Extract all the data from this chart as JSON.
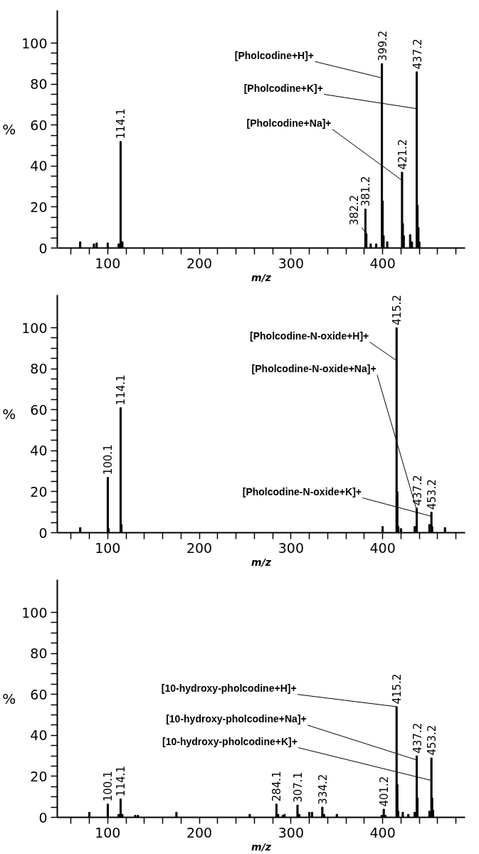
{
  "chart_data": [
    {
      "type": "bar",
      "xlabel": "m/z",
      "ylabel": "%",
      "color": "#000000",
      "grid": false,
      "xlim": [
        45,
        490
      ],
      "ylim": [
        0,
        116
      ],
      "xticks": [
        {
          "value": 60,
          "label": null
        },
        {
          "value": 80,
          "label": null
        },
        100,
        {
          "value": 120,
          "label": null
        },
        {
          "value": 140,
          "label": null
        },
        {
          "value": 160,
          "label": null
        },
        {
          "value": 180,
          "label": null
        },
        200,
        {
          "value": 220,
          "label": null
        },
        {
          "value": 240,
          "label": null
        },
        {
          "value": 260,
          "label": null
        },
        {
          "value": 280,
          "label": null
        },
        300,
        {
          "value": 320,
          "label": null
        },
        {
          "value": 340,
          "label": null
        },
        {
          "value": 360,
          "label": null
        },
        {
          "value": 380,
          "label": null
        },
        400,
        {
          "value": 420,
          "label": null
        },
        {
          "value": 440,
          "label": null
        },
        {
          "value": 460,
          "label": null
        },
        {
          "value": 480,
          "label": null
        }
      ],
      "yticks": [
        0,
        {
          "value": 5,
          "label": null
        },
        {
          "value": 10,
          "label": null
        },
        {
          "value": 15,
          "label": null
        },
        20,
        {
          "value": 25,
          "label": null
        },
        {
          "value": 30,
          "label": null
        },
        {
          "value": 35,
          "label": null
        },
        40,
        {
          "value": 45,
          "label": null
        },
        {
          "value": 50,
          "label": null
        },
        {
          "value": 55,
          "label": null
        },
        60,
        {
          "value": 65,
          "label": null
        },
        {
          "value": 70,
          "label": null
        },
        {
          "value": 75,
          "label": null
        },
        80,
        {
          "value": 85,
          "label": null
        },
        {
          "value": 90,
          "label": null
        },
        {
          "value": 95,
          "label": null
        },
        100
      ],
      "x": [
        70,
        85,
        88,
        100,
        112,
        114.1,
        116,
        381.2,
        382.2,
        387,
        393,
        399.2,
        400,
        401,
        405,
        421.2,
        422,
        423,
        430,
        432,
        437.2,
        438,
        439,
        440
      ],
      "values": [
        3,
        2,
        2.5,
        2.5,
        2,
        52,
        3,
        19,
        7,
        2,
        2,
        90,
        23,
        6,
        3,
        37,
        12,
        6,
        6.5,
        3,
        86,
        21,
        10,
        3
      ],
      "annotations": [
        {
          "text": "[Pholcodine+H]+",
          "x": 399.2,
          "y": 83
        },
        {
          "text": "[Pholcodine+K]+",
          "x": 437.2,
          "y": 68
        },
        {
          "text": "[Pholcodine+Na]+",
          "x": 421.2,
          "y": 33
        },
        {
          "text": "114.1",
          "x": 114.1,
          "y": 52
        },
        {
          "text": "381.2",
          "x": 381.2,
          "y": 19
        },
        {
          "text": "382.2",
          "x": 382.2,
          "y": 7
        },
        {
          "text": "399.2",
          "x": 399.2,
          "y": 90
        },
        {
          "text": "421.2",
          "x": 421.2,
          "y": 37
        },
        {
          "text": "437.2",
          "x": 437.2,
          "y": 86
        }
      ]
    },
    {
      "type": "bar",
      "xlabel": "m/z",
      "ylabel": "%",
      "color": "#000000",
      "grid": false,
      "xlim": [
        45,
        490
      ],
      "ylim": [
        0,
        116
      ],
      "xticks": [
        {
          "value": 60,
          "label": null
        },
        {
          "value": 80,
          "label": null
        },
        100,
        {
          "value": 120,
          "label": null
        },
        {
          "value": 140,
          "label": null
        },
        {
          "value": 160,
          "label": null
        },
        {
          "value": 180,
          "label": null
        },
        200,
        {
          "value": 220,
          "label": null
        },
        {
          "value": 240,
          "label": null
        },
        {
          "value": 260,
          "label": null
        },
        {
          "value": 280,
          "label": null
        },
        300,
        {
          "value": 320,
          "label": null
        },
        {
          "value": 340,
          "label": null
        },
        {
          "value": 360,
          "label": null
        },
        {
          "value": 380,
          "label": null
        },
        400,
        {
          "value": 420,
          "label": null
        },
        {
          "value": 440,
          "label": null
        },
        {
          "value": 460,
          "label": null
        },
        {
          "value": 480,
          "label": null
        }
      ],
      "yticks": [
        0,
        {
          "value": 5,
          "label": null
        },
        {
          "value": 10,
          "label": null
        },
        {
          "value": 15,
          "label": null
        },
        20,
        {
          "value": 25,
          "label": null
        },
        {
          "value": 30,
          "label": null
        },
        {
          "value": 35,
          "label": null
        },
        40,
        {
          "value": 45,
          "label": null
        },
        {
          "value": 50,
          "label": null
        },
        {
          "value": 55,
          "label": null
        },
        60,
        {
          "value": 65,
          "label": null
        },
        {
          "value": 70,
          "label": null
        },
        {
          "value": 75,
          "label": null
        },
        80,
        {
          "value": 85,
          "label": null
        },
        {
          "value": 90,
          "label": null
        },
        {
          "value": 95,
          "label": null
        },
        100
      ],
      "x": [
        70,
        100.1,
        101,
        114.1,
        115,
        400,
        415.2,
        416,
        417,
        420,
        435,
        437.2,
        451,
        453.2,
        454,
        468
      ],
      "values": [
        2.5,
        27,
        2,
        61,
        4,
        3,
        100,
        20,
        3,
        2,
        3,
        12,
        4,
        10,
        3,
        2.5
      ],
      "annotations": [
        {
          "text": "[Pholcodine-N-oxide+H]+",
          "x": 415.2,
          "y": 84
        },
        {
          "text": "[Pholcodine-N-oxide+Na]+",
          "x": 437.2,
          "y": 11
        },
        {
          "text": "[Pholcodine-N-oxide+K]+",
          "x": 453.2,
          "y": 8
        },
        {
          "text": "100.1",
          "x": 100.1,
          "y": 27
        },
        {
          "text": "114.1",
          "x": 114.1,
          "y": 61
        },
        {
          "text": "415.2",
          "x": 415.2,
          "y": 100
        },
        {
          "text": "437.2",
          "x": 437.2,
          "y": 12
        },
        {
          "text": "453.2",
          "x": 453.2,
          "y": 10
        }
      ]
    },
    {
      "type": "bar",
      "xlabel": "m/z",
      "ylabel": "%",
      "color": "#000000",
      "grid": false,
      "xlim": [
        45,
        490
      ],
      "ylim": [
        0,
        116
      ],
      "xticks": [
        {
          "value": 60,
          "label": null
        },
        {
          "value": 80,
          "label": null
        },
        100,
        {
          "value": 120,
          "label": null
        },
        {
          "value": 140,
          "label": null
        },
        {
          "value": 160,
          "label": null
        },
        {
          "value": 180,
          "label": null
        },
        200,
        {
          "value": 220,
          "label": null
        },
        {
          "value": 240,
          "label": null
        },
        {
          "value": 260,
          "label": null
        },
        {
          "value": 280,
          "label": null
        },
        300,
        {
          "value": 320,
          "label": null
        },
        {
          "value": 340,
          "label": null
        },
        {
          "value": 360,
          "label": null
        },
        {
          "value": 380,
          "label": null
        },
        400,
        {
          "value": 420,
          "label": null
        },
        {
          "value": 440,
          "label": null
        },
        {
          "value": 460,
          "label": null
        },
        {
          "value": 480,
          "label": null
        }
      ],
      "yticks": [
        0,
        {
          "value": 5,
          "label": null
        },
        {
          "value": 10,
          "label": null
        },
        {
          "value": 15,
          "label": null
        },
        20,
        {
          "value": 25,
          "label": null
        },
        {
          "value": 30,
          "label": null
        },
        {
          "value": 35,
          "label": null
        },
        40,
        {
          "value": 45,
          "label": null
        },
        {
          "value": 50,
          "label": null
        },
        {
          "value": 55,
          "label": null
        },
        60,
        {
          "value": 65,
          "label": null
        },
        {
          "value": 70,
          "label": null
        },
        {
          "value": 75,
          "label": null
        },
        80,
        {
          "value": 85,
          "label": null
        },
        {
          "value": 90,
          "label": null
        },
        {
          "value": 95,
          "label": null
        },
        100
      ],
      "x": [
        80,
        100.1,
        112,
        114.1,
        116,
        130,
        133,
        175,
        255,
        284.1,
        286,
        291,
        293,
        307.1,
        309,
        320,
        323,
        334.2,
        336,
        350,
        399,
        401.2,
        403,
        415.2,
        416,
        417,
        422,
        428,
        435,
        437.2,
        438,
        451,
        453.2,
        454,
        455
      ],
      "values": [
        2.5,
        6.5,
        1.5,
        9,
        1.5,
        1,
        1,
        2.5,
        1.5,
        6.5,
        1.5,
        1,
        1.5,
        6,
        1.5,
        2.5,
        2.5,
        5,
        1.5,
        1.5,
        1,
        4,
        1,
        54,
        16,
        3,
        2.5,
        1.5,
        2.5,
        30,
        9.5,
        3,
        29,
        9.5,
        3.5
      ],
      "annotations": [
        {
          "text": "[10-hydroxy-pholcodine+H]+",
          "x": 415.2,
          "y": 54
        },
        {
          "text": "[10-hydroxy-pholcodine+Na]+",
          "x": 437.2,
          "y": 28
        },
        {
          "text": "[10-hydroxy-pholcodine+K]+",
          "x": 453.2,
          "y": 18
        },
        {
          "text": "100.1",
          "x": 100.1,
          "y": 6.5
        },
        {
          "text": "114.1",
          "x": 114.1,
          "y": 9
        },
        {
          "text": "284.1",
          "x": 284.1,
          "y": 6.5
        },
        {
          "text": "307.1",
          "x": 307.1,
          "y": 6
        },
        {
          "text": "334.2",
          "x": 334.2,
          "y": 5
        },
        {
          "text": "401.2",
          "x": 401.2,
          "y": 4
        },
        {
          "text": "415.2",
          "x": 415.2,
          "y": 54
        },
        {
          "text": "437.2",
          "x": 437.2,
          "y": 30
        },
        {
          "text": "453.2",
          "x": 453.2,
          "y": 29
        }
      ]
    }
  ]
}
